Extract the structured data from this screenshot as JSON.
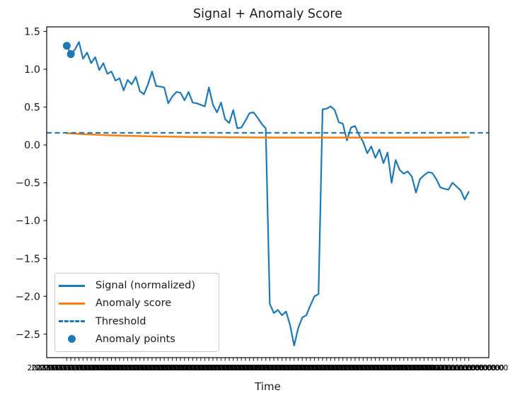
{
  "colors": {
    "blue": "#1f77b4",
    "orange": "#ff7f0e",
    "text": "#1a1a1a",
    "spine": "#262626",
    "legend_border": "#cccccc",
    "background": "#ffffff"
  },
  "chart_data": {
    "type": "line",
    "title": "Signal + Anomaly Score",
    "xlabel": "Time",
    "ylabel": "",
    "ylim": [
      -2.81,
      1.56
    ],
    "grid": false,
    "yticks": [
      1.5,
      1.0,
      0.5,
      0.0,
      -0.5,
      -1.0,
      -1.5,
      -2.0,
      -2.5
    ],
    "ytick_labels": [
      "1.5",
      "1.0",
      "0.5",
      "0.0",
      "−0.5",
      "−1.0",
      "−1.5",
      "−2.0",
      "−2.5"
    ],
    "x_axis": {
      "label": "Time",
      "tick_count": 100,
      "tick_labels_overlapping_illegible": true,
      "tick_label_sample": "2023-01-01 00:00:00"
    },
    "legend": {
      "position": "lower left",
      "entries": [
        "Signal (normalized)",
        "Anomaly score",
        "Threshold",
        "Anomaly points"
      ]
    },
    "series": [
      {
        "name": "Signal (normalized)",
        "type": "line",
        "style": "solid",
        "color": "#1f77b4",
        "values": [
          1.31,
          1.2,
          1.26,
          1.36,
          1.14,
          1.22,
          1.08,
          1.16,
          0.99,
          1.08,
          0.94,
          0.97,
          0.85,
          0.88,
          0.72,
          0.86,
          0.8,
          0.9,
          0.71,
          0.67,
          0.8,
          0.97,
          0.78,
          0.77,
          0.76,
          0.55,
          0.64,
          0.7,
          0.69,
          0.59,
          0.7,
          0.56,
          0.55,
          0.53,
          0.51,
          0.76,
          0.53,
          0.43,
          0.56,
          0.34,
          0.29,
          0.46,
          0.22,
          0.23,
          0.32,
          0.42,
          0.43,
          0.36,
          0.28,
          0.22,
          -2.1,
          -2.22,
          -2.18,
          -2.25,
          -2.2,
          -2.38,
          -2.65,
          -2.42,
          -2.28,
          -2.25,
          -2.12,
          -2.0,
          -1.97,
          0.47,
          0.48,
          0.51,
          0.46,
          0.3,
          0.28,
          0.06,
          0.23,
          0.25,
          0.13,
          0.04,
          -0.11,
          -0.02,
          -0.17,
          -0.06,
          -0.24,
          -0.1,
          -0.5,
          -0.2,
          -0.33,
          -0.38,
          -0.35,
          -0.42,
          -0.63,
          -0.45,
          -0.4,
          -0.36,
          -0.37,
          -0.45,
          -0.56,
          -0.58,
          -0.59,
          -0.5,
          -0.55,
          -0.6,
          -0.72,
          -0.62
        ]
      },
      {
        "name": "Anomaly score",
        "type": "line",
        "style": "solid",
        "color": "#ff7f0e",
        "values": [
          0.155,
          0.152,
          0.149,
          0.146,
          0.143,
          0.141,
          0.138,
          0.136,
          0.133,
          0.131,
          0.129,
          0.127,
          0.126,
          0.124,
          0.122,
          0.121,
          0.12,
          0.118,
          0.117,
          0.116,
          0.115,
          0.114,
          0.113,
          0.112,
          0.111,
          0.11,
          0.109,
          0.108,
          0.108,
          0.107,
          0.106,
          0.106,
          0.105,
          0.105,
          0.104,
          0.104,
          0.103,
          0.103,
          0.102,
          0.102,
          0.101,
          0.101,
          0.101,
          0.1,
          0.1,
          0.1,
          0.099,
          0.099,
          0.099,
          0.098,
          0.098,
          0.098,
          0.098,
          0.097,
          0.097,
          0.097,
          0.097,
          0.097,
          0.097,
          0.097,
          0.097,
          0.097,
          0.097,
          0.097,
          0.097,
          0.097,
          0.097,
          0.097,
          0.097,
          0.097,
          0.097,
          0.097,
          0.097,
          0.097,
          0.097,
          0.097,
          0.097,
          0.097,
          0.097,
          0.097,
          0.097,
          0.097,
          0.097,
          0.097,
          0.097,
          0.097,
          0.098,
          0.098,
          0.098,
          0.098,
          0.099,
          0.099,
          0.099,
          0.1,
          0.1,
          0.1,
          0.101,
          0.101,
          0.102,
          0.102
        ]
      },
      {
        "name": "Threshold",
        "type": "hline",
        "style": "dashed",
        "color": "#1f77b4",
        "value": 0.16
      },
      {
        "name": "Anomaly points",
        "type": "scatter",
        "color": "#1f77b4",
        "points": [
          {
            "x": 0,
            "y": 1.31
          },
          {
            "x": 1,
            "y": 1.2
          }
        ]
      }
    ]
  }
}
